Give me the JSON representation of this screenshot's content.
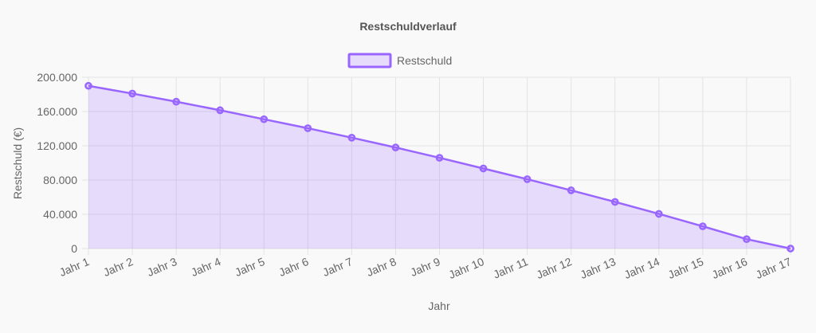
{
  "chart_data": {
    "type": "area",
    "title": "Restschuldverlauf",
    "xlabel": "Jahr",
    "ylabel": "Restschuld (€)",
    "categories": [
      "Jahr 1",
      "Jahr 2",
      "Jahr 3",
      "Jahr 4",
      "Jahr 5",
      "Jahr 6",
      "Jahr 7",
      "Jahr 8",
      "Jahr 9",
      "Jahr 10",
      "Jahr 11",
      "Jahr 12",
      "Jahr 13",
      "Jahr 14",
      "Jahr 15",
      "Jahr 16",
      "Jahr 17"
    ],
    "series": [
      {
        "name": "Restschuld",
        "values": [
          190000,
          181000,
          171500,
          161500,
          151000,
          140500,
          129500,
          118000,
          106000,
          93500,
          81000,
          68000,
          54500,
          40500,
          26000,
          11000,
          0
        ]
      }
    ],
    "ylim": [
      0,
      200000
    ],
    "yticks": [
      0,
      40000,
      80000,
      120000,
      160000,
      200000
    ],
    "ytick_labels": [
      "0",
      "40.000",
      "80.000",
      "120.000",
      "160.000",
      "200.000"
    ],
    "grid": true,
    "legend_position": "top-center",
    "colors": {
      "line": "#9966ff",
      "fill": "rgba(153,102,255,0.2)",
      "grid": "#e3e3e3"
    }
  }
}
